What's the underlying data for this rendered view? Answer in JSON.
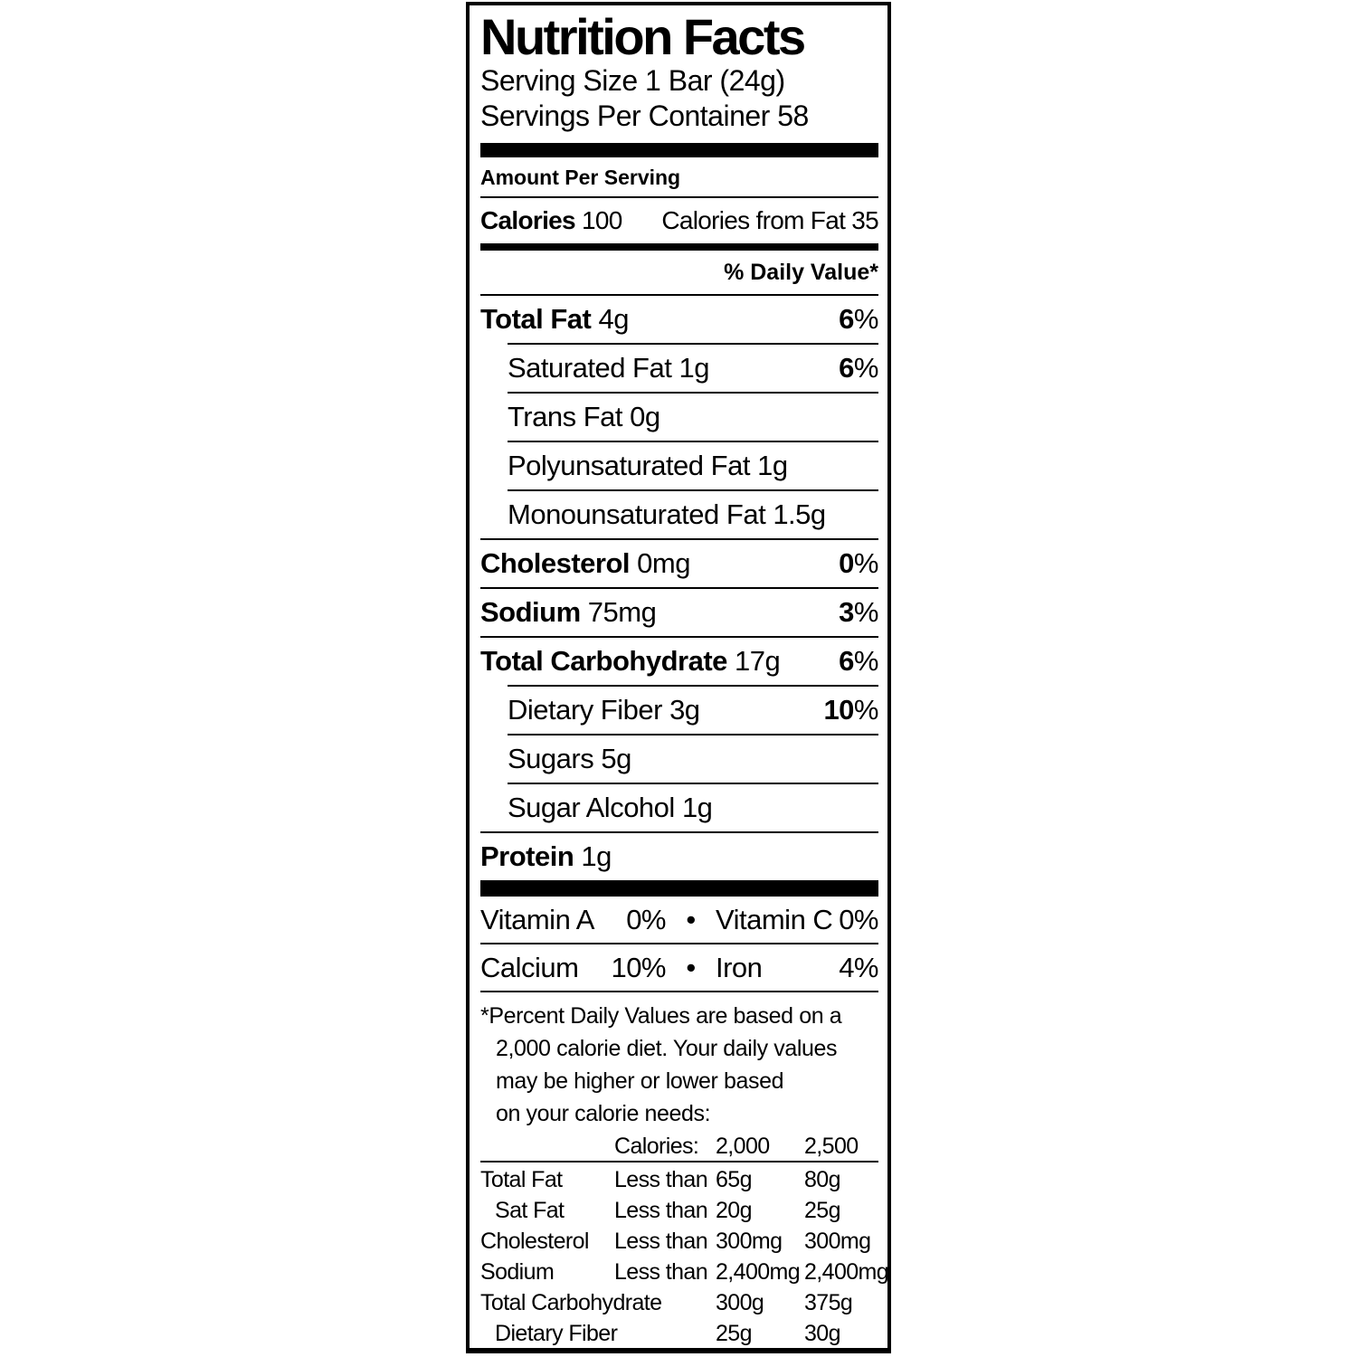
{
  "label": {
    "title": "Nutrition Facts",
    "serving_size": "Serving Size 1 Bar (24g)",
    "servings_per_container": "Servings Per Container 58",
    "amount_per_serving": "Amount Per Serving",
    "calories_label": "Calories",
    "calories_value": "100",
    "calories_from_fat": "Calories from Fat 35",
    "daily_value_header": "% Daily Value*",
    "percent_sign": "%",
    "bullet": "•",
    "rows": [
      {
        "name": "Total Fat",
        "amount": "4g",
        "dv": "6"
      },
      {
        "name": "Saturated Fat",
        "amount": "1g",
        "dv": "6"
      },
      {
        "name": "Trans Fat",
        "amount": "0g"
      },
      {
        "name": "Polyunsaturated Fat",
        "amount": "1g"
      },
      {
        "name": "Monounsaturated Fat",
        "amount": "1.5g"
      },
      {
        "name": "Cholesterol",
        "amount": "0mg",
        "dv": "0"
      },
      {
        "name": "Sodium",
        "amount": "75mg",
        "dv": "3"
      },
      {
        "name": "Total Carbohydrate",
        "amount": "17g",
        "dv": "6"
      },
      {
        "name": "Dietary Fiber",
        "amount": "3g",
        "dv": "10"
      },
      {
        "name": "Sugars",
        "amount": "5g"
      },
      {
        "name": "Sugar Alcohol",
        "amount": "1g"
      },
      {
        "name": "Protein",
        "amount": "1g"
      }
    ],
    "vitamins": [
      {
        "left_name": "Vitamin A",
        "left_value": "0%",
        "right_name": "Vitamin C",
        "right_value": "0%"
      },
      {
        "left_name": "Calcium",
        "left_value": "10%",
        "right_name": "Iron",
        "right_value": "4%"
      }
    ],
    "footnote_lines": [
      "*Percent Daily Values are based on a",
      "2,000 calorie diet. Your daily values",
      "may be higher or lower based",
      "on your calorie needs:",
      ""
    ],
    "fn_table": {
      "header_label": "Calories:",
      "header_2000": "2,000",
      "header_2500": "2,500",
      "rows": [
        {
          "label": "Total Fat",
          "qual": "Less than",
          "v2000": "65g",
          "v2500": "80g"
        },
        {
          "label": "Sat Fat",
          "qual": "Less than",
          "v2000": "20g",
          "v2500": "25g"
        },
        {
          "label": "Cholesterol",
          "qual": "Less than",
          "v2000": "300mg",
          "v2500": "300mg"
        },
        {
          "label": "Sodium",
          "qual": "Less than",
          "v2000": "2,400mg",
          "v2500": "2,400mg"
        },
        {
          "label": "Total Carbohydrate",
          "qual": "",
          "v2000": "300g",
          "v2500": "375g"
        },
        {
          "label": "Dietary Fiber",
          "qual": "",
          "v2000": "25g",
          "v2500": "30g"
        }
      ]
    }
  }
}
